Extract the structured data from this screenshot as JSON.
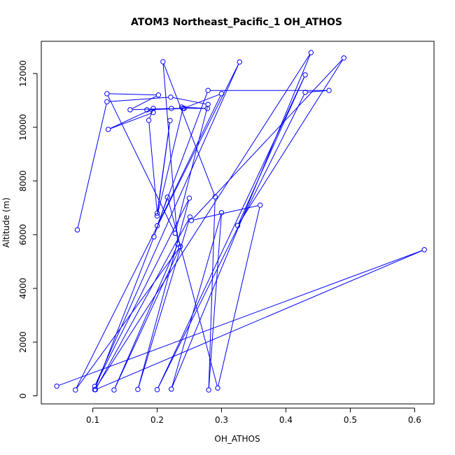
{
  "chart_data": {
    "type": "line",
    "title": "ATOM3 Northeast_Pacific_1 OH_ATHOS",
    "xlabel": "OH_ATHOS",
    "ylabel": "Altitude (m)",
    "xlim": [
      0.02,
      0.63
    ],
    "ylim": [
      -300,
      13200
    ],
    "x_ticks": [
      0.1,
      0.2,
      0.3,
      0.4,
      0.5,
      0.6
    ],
    "x_tick_labels": [
      "0.1",
      "0.2",
      "0.3",
      "0.4",
      "0.5",
      "0.6"
    ],
    "y_ticks": [
      0,
      2000,
      4000,
      6000,
      8000,
      10000,
      12000
    ],
    "y_tick_labels": [
      "0",
      "2000",
      "4000",
      "6000",
      "8000",
      "10000",
      "12000"
    ],
    "grid": false,
    "series": [
      {
        "color": "#0000ff",
        "marker": "open-circle",
        "points": [
          [
            0.076,
            6180
          ],
          [
            0.122,
            10950
          ],
          [
            0.221,
            11120
          ],
          [
            0.279,
            10850
          ],
          [
            0.228,
            6050
          ],
          [
            0.122,
            11250
          ],
          [
            0.202,
            11200
          ],
          [
            0.158,
            10650
          ],
          [
            0.222,
            10700
          ],
          [
            0.278,
            10700
          ],
          [
            0.238,
            10750
          ],
          [
            0.242,
            10700
          ],
          [
            0.184,
            10650
          ],
          [
            0.194,
            10550
          ],
          [
            0.124,
            9920
          ],
          [
            0.194,
            10700
          ],
          [
            0.187,
            10260
          ],
          [
            0.2,
            6800
          ],
          [
            0.22,
            10250
          ],
          [
            0.2,
            6700
          ],
          [
            0.24,
            10700
          ],
          [
            0.3,
            11250
          ],
          [
            0.2,
            6330
          ],
          [
            0.279,
            11370
          ],
          [
            0.467,
            11370
          ],
          [
            0.43,
            11300
          ],
          [
            0.2,
            230
          ],
          [
            0.43,
            11950
          ],
          [
            0.325,
            6340
          ],
          [
            0.49,
            12580
          ],
          [
            0.253,
            6530
          ],
          [
            0.36,
            7100
          ],
          [
            0.294,
            290
          ],
          [
            0.216,
            7400
          ],
          [
            0.195,
            5920
          ],
          [
            0.103,
            230
          ],
          [
            0.439,
            12780
          ],
          [
            0.222,
            250
          ],
          [
            0.3,
            6820
          ],
          [
            0.28,
            220
          ],
          [
            0.29,
            7410
          ],
          [
            0.209,
            12440
          ],
          [
            0.232,
            5650
          ],
          [
            0.133,
            220
          ],
          [
            0.236,
            5560
          ],
          [
            0.073,
            220
          ],
          [
            0.328,
            12430
          ],
          [
            0.103,
            350
          ],
          [
            0.25,
            7360
          ],
          [
            0.17,
            240
          ],
          [
            0.251,
            6660
          ],
          [
            0.104,
            230
          ],
          [
            0.615,
            5440
          ],
          [
            0.044,
            360
          ]
        ]
      }
    ]
  }
}
